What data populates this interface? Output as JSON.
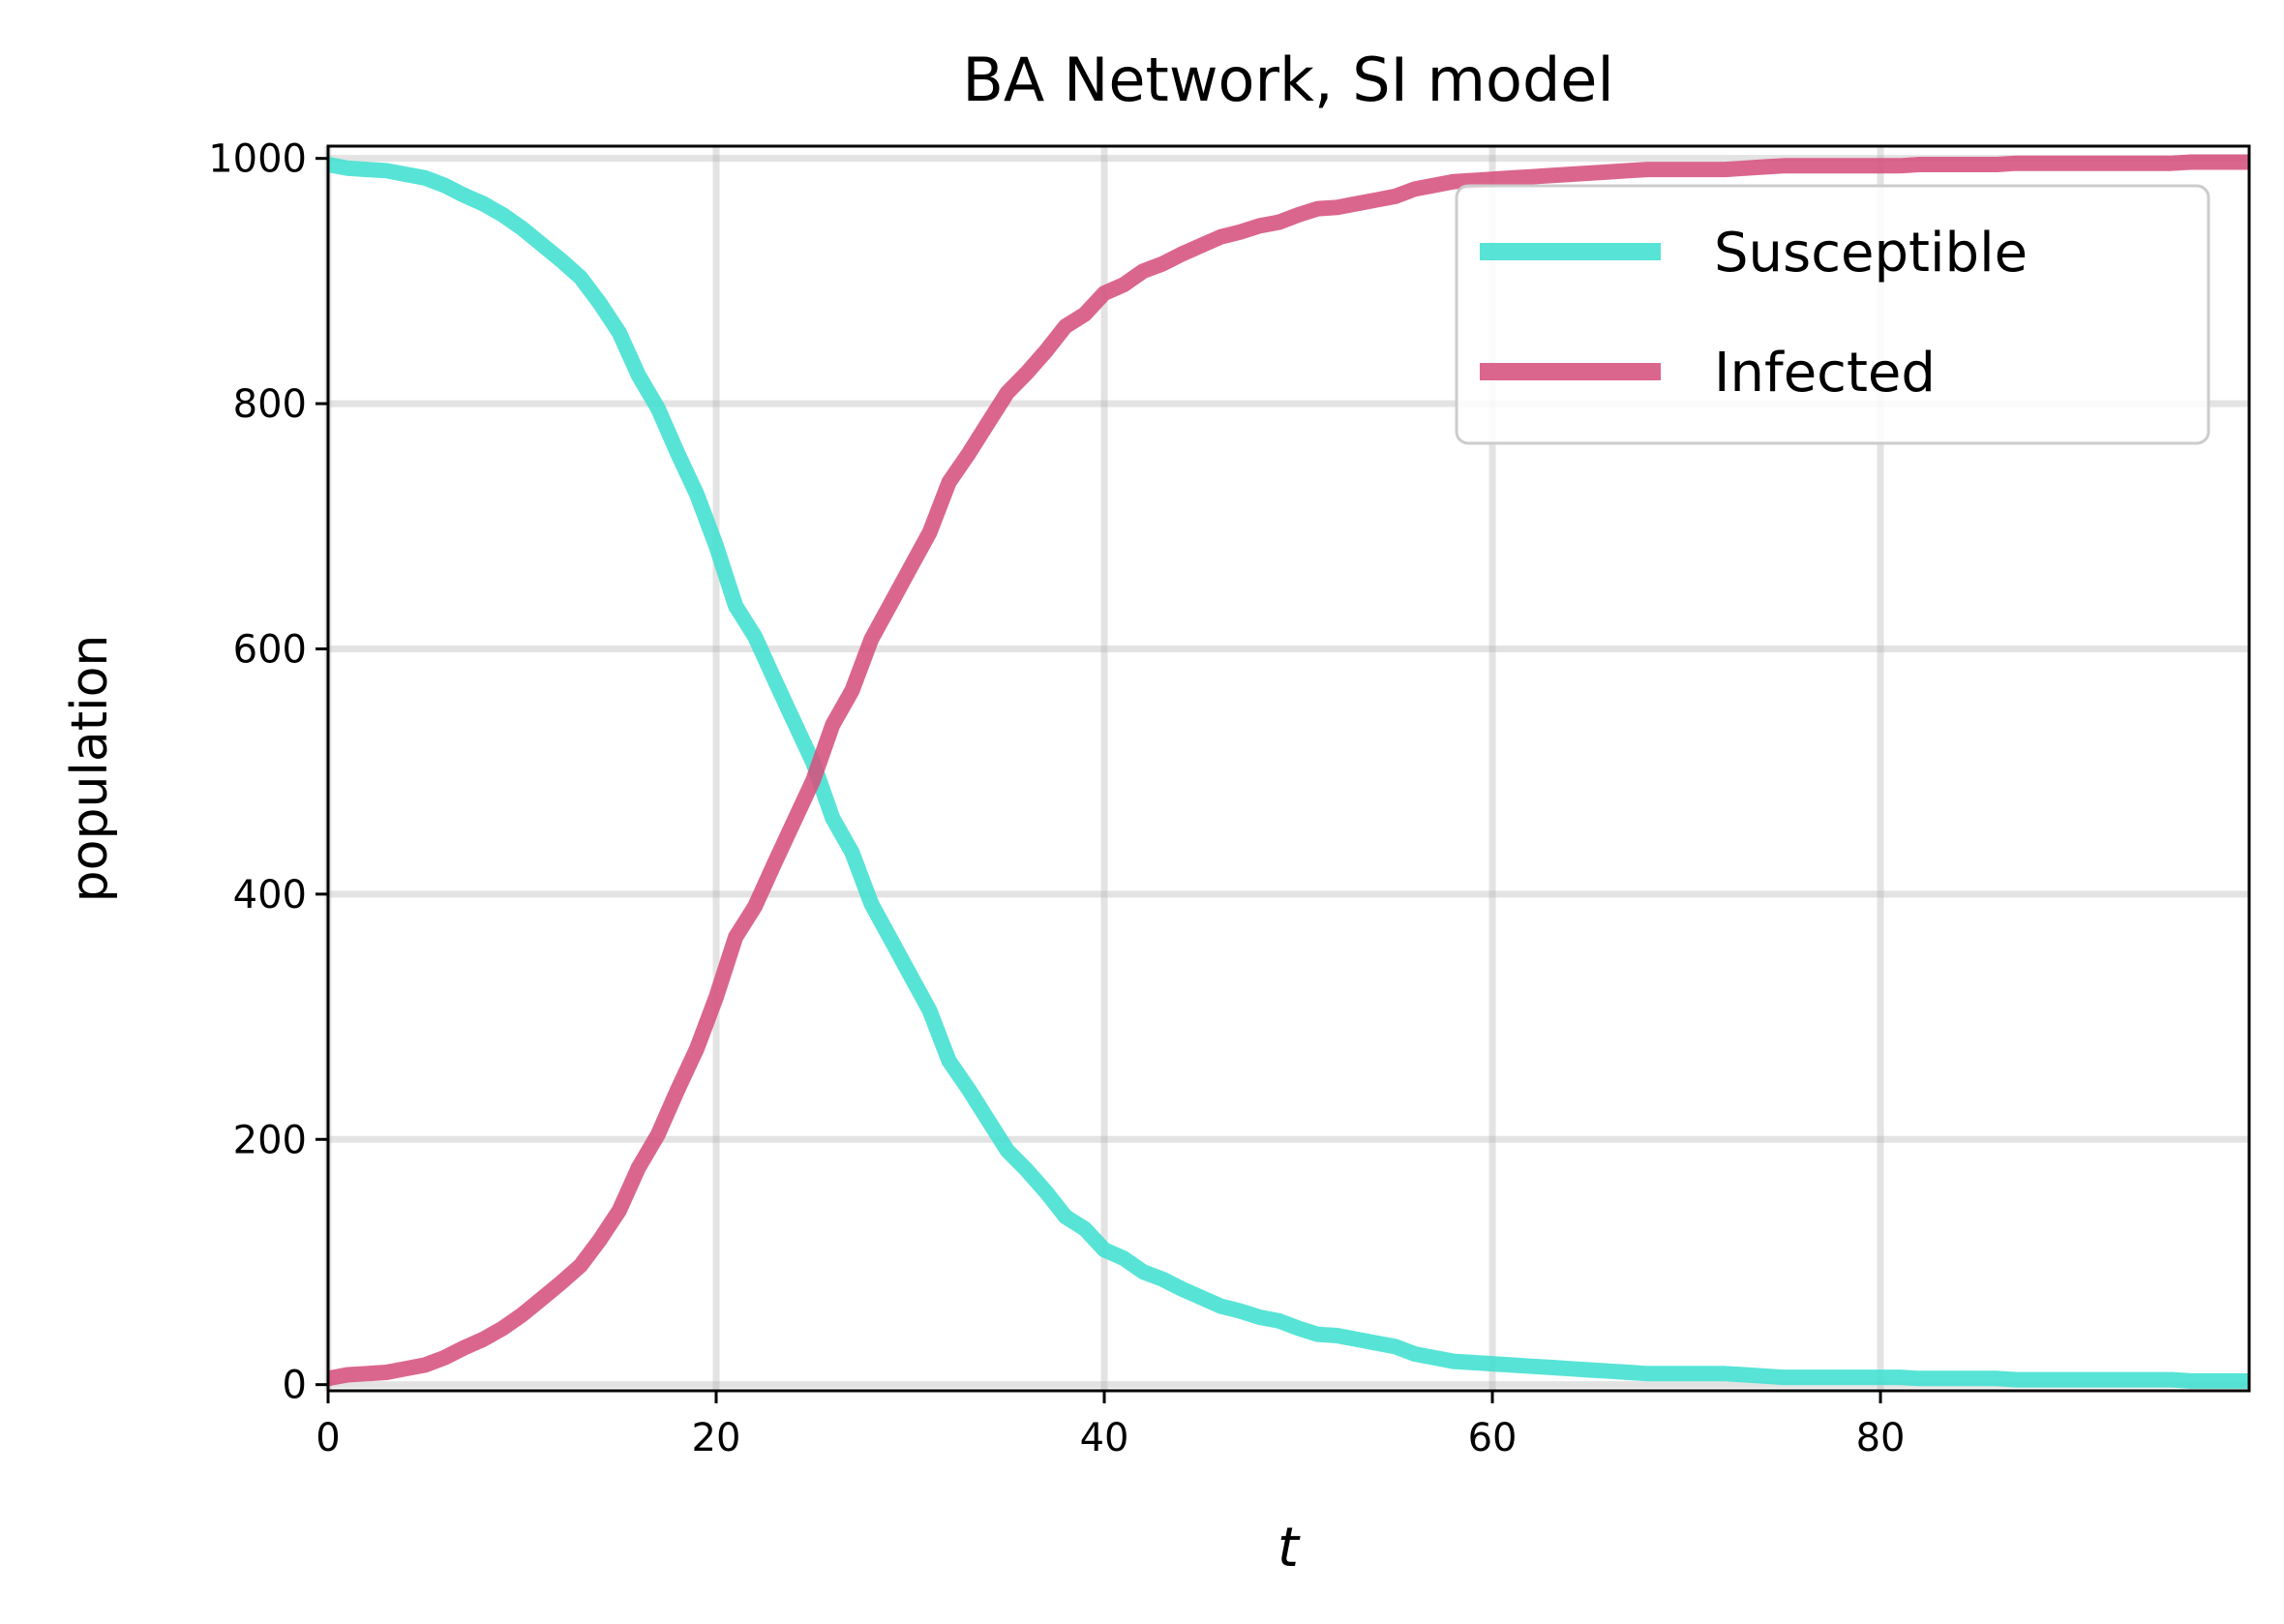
{
  "chart_data": {
    "type": "line",
    "title": "BA Network, SI model",
    "xlabel": "t",
    "ylabel": "population",
    "xlim": [
      0,
      99
    ],
    "ylim": [
      -5,
      1010
    ],
    "x_ticks": [
      0,
      20,
      40,
      60,
      80
    ],
    "y_ticks": [
      0,
      200,
      400,
      600,
      800,
      1000
    ],
    "grid": true,
    "legend_position": "top-right",
    "x": [
      0,
      1,
      2,
      3,
      4,
      5,
      6,
      7,
      8,
      9,
      10,
      11,
      12,
      13,
      14,
      15,
      16,
      17,
      18,
      19,
      20,
      21,
      22,
      23,
      24,
      25,
      26,
      27,
      28,
      29,
      30,
      31,
      32,
      33,
      34,
      35,
      36,
      37,
      38,
      39,
      40,
      41,
      42,
      43,
      44,
      45,
      46,
      47,
      48,
      49,
      50,
      51,
      52,
      53,
      54,
      55,
      56,
      57,
      58,
      59,
      60,
      61,
      62,
      63,
      64,
      65,
      66,
      67,
      68,
      69,
      70,
      71,
      72,
      73,
      74,
      75,
      76,
      77,
      78,
      79,
      80,
      81,
      82,
      83,
      84,
      85,
      86,
      87,
      88,
      89,
      90,
      91,
      92,
      93,
      94,
      95,
      96,
      97,
      98,
      99
    ],
    "series": [
      {
        "name": "Susceptible",
        "color": "#40E0D0",
        "values": [
          995,
          992,
          991,
          990,
          987,
          984,
          978,
          970,
          963,
          954,
          943,
          930,
          917,
          903,
          882,
          858,
          823,
          796,
          760,
          726,
          684,
          635,
          610,
          575,
          541,
          507,
          462,
          434,
          392,
          363,
          334,
          305,
          264,
          241,
          216,
          191,
          175,
          157,
          137,
          127,
          110,
          103,
          92,
          86,
          78,
          71,
          64,
          60,
          55,
          52,
          46,
          41,
          40,
          37,
          34,
          31,
          25,
          22,
          19,
          18,
          17,
          16,
          15,
          14,
          13,
          12,
          11,
          10,
          9,
          9,
          9,
          9,
          9,
          8,
          7,
          6,
          6,
          6,
          6,
          6,
          6,
          6,
          5,
          5,
          5,
          5,
          5,
          4,
          4,
          4,
          4,
          4,
          4,
          4,
          4,
          4,
          3,
          3,
          3,
          3
        ]
      },
      {
        "name": "Infected",
        "color": "#D6517D",
        "values": [
          5,
          8,
          9,
          10,
          13,
          16,
          22,
          30,
          37,
          46,
          57,
          70,
          83,
          97,
          118,
          142,
          177,
          204,
          240,
          274,
          316,
          365,
          390,
          425,
          459,
          493,
          538,
          566,
          608,
          637,
          666,
          695,
          736,
          759,
          784,
          809,
          825,
          843,
          863,
          873,
          890,
          897,
          908,
          914,
          922,
          929,
          936,
          940,
          945,
          948,
          954,
          959,
          960,
          963,
          966,
          969,
          975,
          978,
          981,
          982,
          983,
          984,
          985,
          986,
          987,
          988,
          989,
          990,
          991,
          991,
          991,
          991,
          991,
          992,
          993,
          994,
          994,
          994,
          994,
          994,
          994,
          994,
          995,
          995,
          995,
          995,
          995,
          996,
          996,
          996,
          996,
          996,
          996,
          996,
          996,
          996,
          997,
          997,
          997,
          997
        ]
      }
    ]
  }
}
